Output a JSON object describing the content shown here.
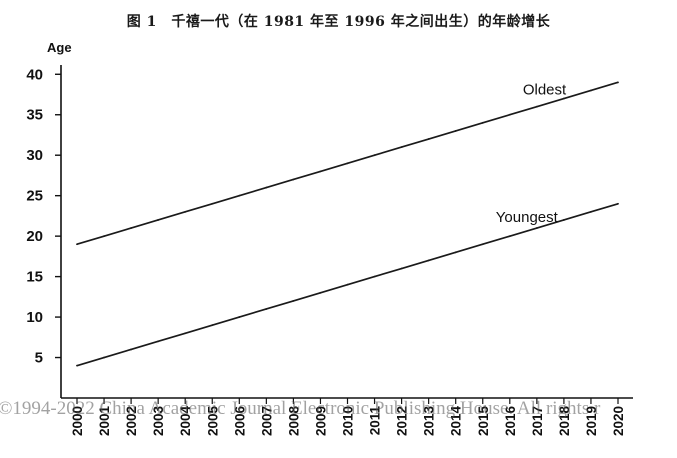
{
  "watermark": "©1994-2022 China Academic Journal Electronic Publishing House. All rights r",
  "chart_data": {
    "type": "line",
    "title": "图 1　千禧一代（在 1981 年至 1996 年之间出生）的年龄增长",
    "xlabel": "",
    "ylabel": "Age",
    "x": [
      "2000",
      "2001",
      "2002",
      "2003",
      "2004",
      "2005",
      "2006",
      "2007",
      "2008",
      "2009",
      "2010",
      "2011",
      "2012",
      "2013",
      "2014",
      "2015",
      "2016",
      "2017",
      "2018",
      "2019",
      "2020"
    ],
    "ylim": [
      0,
      43
    ],
    "yticks": [
      5,
      10,
      15,
      20,
      25,
      30,
      35,
      40
    ],
    "grid": false,
    "series": [
      {
        "name": "Oldest",
        "values": [
          19,
          20,
          21,
          22,
          23,
          24,
          25,
          26,
          27,
          28,
          29,
          30,
          31,
          32,
          33,
          34,
          35,
          36,
          37,
          38,
          39
        ]
      },
      {
        "name": "Youngest",
        "values": [
          4,
          5,
          6,
          7,
          8,
          9,
          10,
          11,
          12,
          13,
          14,
          15,
          16,
          17,
          18,
          19,
          20,
          21,
          22,
          23,
          24
        ]
      }
    ],
    "line_color": "#1a1a1a"
  }
}
